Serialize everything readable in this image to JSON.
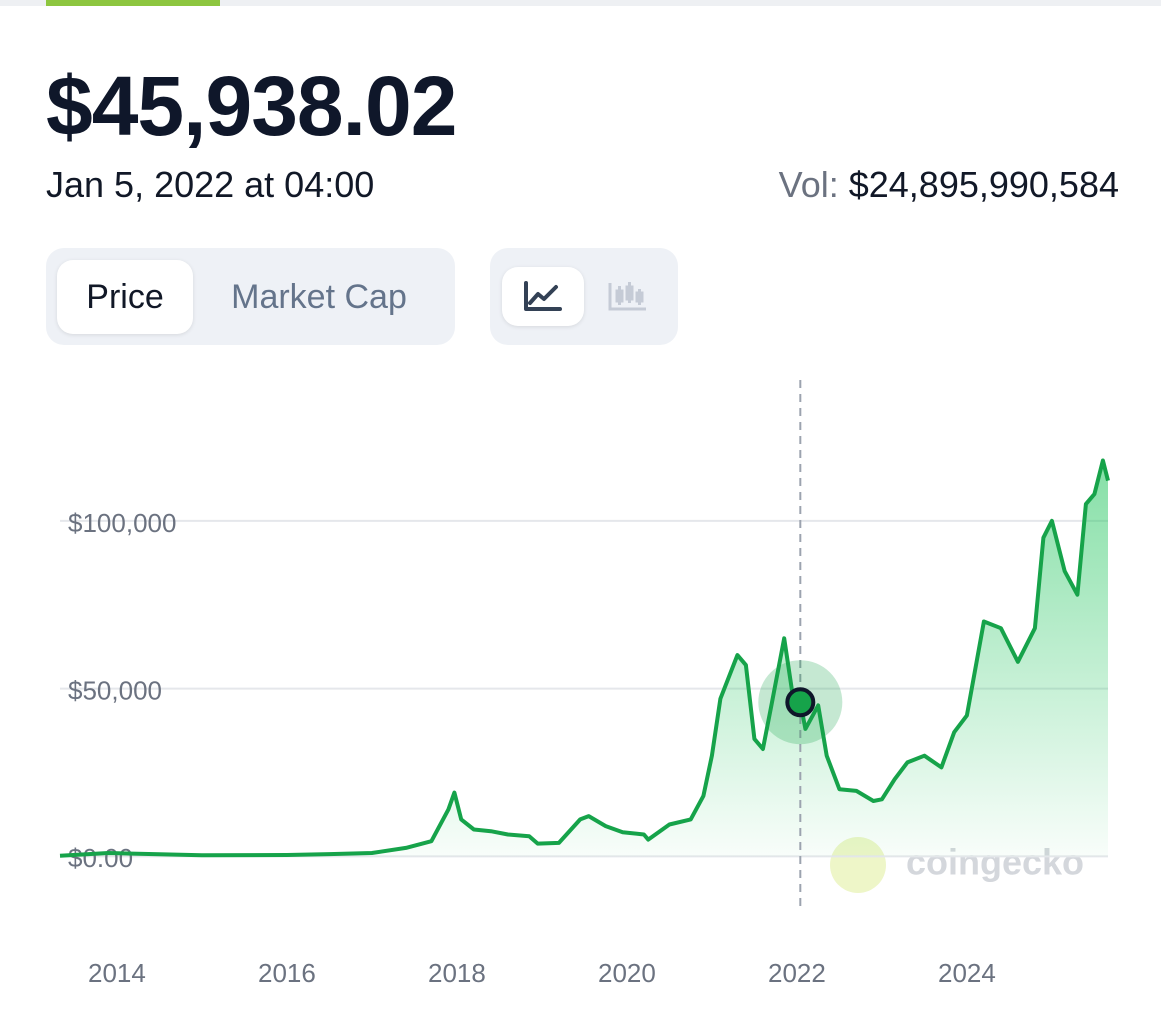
{
  "header": {
    "price": "$45,938.02",
    "date": "Jan 5, 2022 at 04:00",
    "volume_label": "Vol:",
    "volume": "$24,895,990,584"
  },
  "tabs": [
    "Price",
    "Market Cap"
  ],
  "chart_data": {
    "type": "line",
    "x": [
      2013.33,
      2013.9,
      2014.5,
      2015,
      2016,
      2016.5,
      2017,
      2017.4,
      2017.7,
      2017.9,
      2017.97,
      2018.05,
      2018.2,
      2018.4,
      2018.6,
      2018.85,
      2018.95,
      2019.2,
      2019.45,
      2019.55,
      2019.75,
      2019.95,
      2020.2,
      2020.25,
      2020.5,
      2020.75,
      2020.9,
      2021.0,
      2021.1,
      2021.3,
      2021.4,
      2021.5,
      2021.6,
      2021.7,
      2021.85,
      2021.95,
      2022.04,
      2022.1,
      2022.25,
      2022.35,
      2022.5,
      2022.7,
      2022.9,
      2023.0,
      2023.15,
      2023.3,
      2023.5,
      2023.7,
      2023.85,
      2024.0,
      2024.2,
      2024.4,
      2024.6,
      2024.8,
      2024.9,
      2025.0,
      2025.15,
      2025.3,
      2025.4,
      2025.5,
      2025.6,
      2025.66
    ],
    "series": [
      {
        "color": "#16a34a",
        "values": [
          200,
          1000,
          600,
          300,
          400,
          650,
          1000,
          2500,
          4500,
          14000,
          19000,
          11000,
          8000,
          7500,
          6500,
          6000,
          3800,
          4000,
          11000,
          12000,
          9000,
          7200,
          6500,
          5000,
          9500,
          11000,
          18000,
          30000,
          47000,
          60000,
          57000,
          35000,
          32000,
          45000,
          65000,
          48000,
          45938.02,
          38000,
          45000,
          30000,
          20000,
          19500,
          16500,
          17000,
          23000,
          28000,
          30000,
          26500,
          37000,
          42000,
          70000,
          68000,
          58000,
          68000,
          95000,
          100000,
          85000,
          78000,
          105000,
          108000,
          118000,
          112000
        ]
      }
    ],
    "xlim": [
      2013.33,
      2025.66
    ],
    "xticks": [
      2014,
      2016,
      2018,
      2020,
      2022,
      2024
    ],
    "ylim": [
      -16000,
      142000
    ],
    "yticks": [
      {
        "value": 0,
        "label": "$0.00"
      },
      {
        "value": 50000,
        "label": "$50,000"
      },
      {
        "value": 100000,
        "label": "$100,000"
      }
    ],
    "grid": true,
    "highlight": {
      "x": 2022.04,
      "y": 45938.02
    },
    "watermark": "coingecko"
  }
}
